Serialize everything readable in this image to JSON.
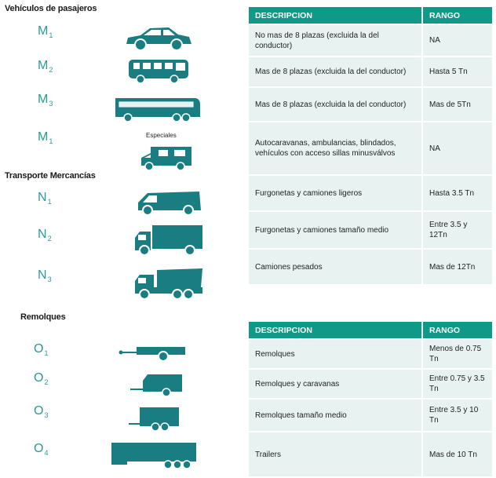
{
  "sections": {
    "pasajeros": "Vehículos de pasajeros",
    "mercancias": "Transporte Mercancías",
    "remolques": "Remolques"
  },
  "codes": {
    "m1": {
      "letter": "M",
      "num": "1"
    },
    "m2": {
      "letter": "M",
      "num": "2"
    },
    "m3": {
      "letter": "M",
      "num": "3"
    },
    "m1b": {
      "letter": "M",
      "num": "1"
    },
    "n1": {
      "letter": "N",
      "num": "1"
    },
    "n2": {
      "letter": "N",
      "num": "2"
    },
    "n3": {
      "letter": "N",
      "num": "3"
    },
    "o1": {
      "letter": "O",
      "num": "1"
    },
    "o2": {
      "letter": "O",
      "num": "2"
    },
    "o3": {
      "letter": "O",
      "num": "3"
    },
    "o4": {
      "letter": "O",
      "num": "4"
    }
  },
  "especiales_label": "Especiales",
  "table1": {
    "headers": {
      "desc": "DESCRIPCION",
      "rango": "RANGO"
    },
    "rows": [
      {
        "desc": "No mas de 8 plazas (excluida la del conductor)",
        "rango": "NA"
      },
      {
        "desc": "Mas de 8 plazas (excluida la del  conductor)",
        "rango": "Hasta  5 Tn"
      },
      {
        "desc": "Mas de 8 plazas (excluida la del  conductor)",
        "rango": "Mas de 5Tn"
      },
      {
        "desc": "Autocaravanas, ambulancias, blindados, vehículos  con acceso sillas minusválvos",
        "rango": "NA"
      },
      {
        "desc": "Furgonetas y camiones ligeros",
        "rango": "Hasta 3.5 Tn"
      },
      {
        "desc": "Furgonetas y camiones tamaño medio",
        "rango": "Entre 3.5 y 12Tn"
      },
      {
        "desc": "Camiones pesados",
        "rango": "Mas de 12Tn"
      }
    ]
  },
  "table2": {
    "headers": {
      "desc": "DESCRIPCION",
      "rango": "RANGO"
    },
    "rows": [
      {
        "desc": "Remolques",
        "rango": "Menos de 0.75 Tn"
      },
      {
        "desc": "Remolques  y caravanas",
        "rango": "Entre 0.75 y 3.5 Tn"
      },
      {
        "desc": "Remolques  tamaño medio",
        "rango": "Entre 3.5 y 10 Tn"
      },
      {
        "desc": "Trailers",
        "rango": "Mas de 10 Tn"
      }
    ]
  },
  "colors": {
    "accent": "#0e9a86",
    "code": "#2a9a98",
    "vehicle": "#1a7d82",
    "cell": "#e8f3f1"
  }
}
